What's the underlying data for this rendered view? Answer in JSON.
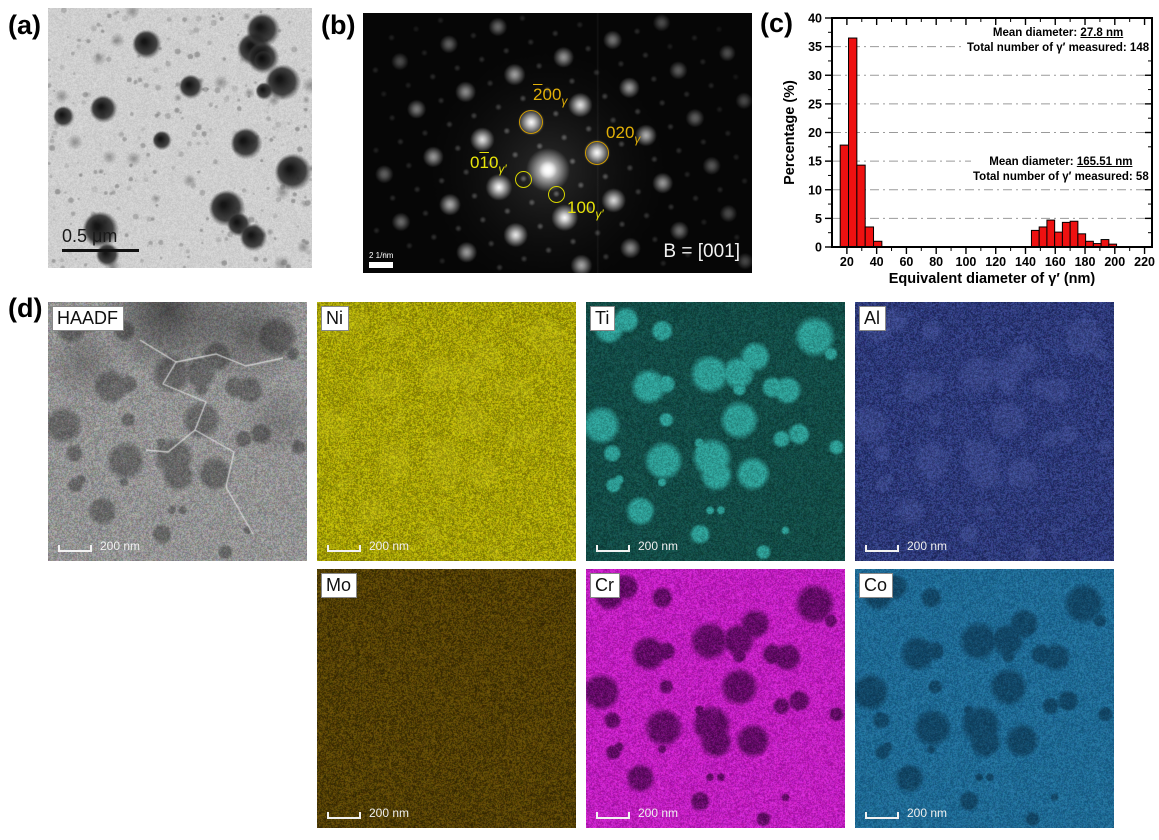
{
  "figure": {
    "panel_a": {
      "label": "(a)",
      "scale_bar_text": "0.5 μm"
    },
    "panel_b": {
      "label": "(b)",
      "beam_label": "B = [001]",
      "scale_bar_text": "2 1/nm",
      "spot_labels": [
        {
          "hkl": "200",
          "bar_digit": 0,
          "sub": "γ",
          "color": "#e2b007",
          "circle_color": "#cf9b00"
        },
        {
          "hkl": "020",
          "bar_digit": -1,
          "sub": "γ",
          "color": "#e2b007",
          "circle_color": "#cf9b00"
        },
        {
          "hkl": "010",
          "bar_digit": 1,
          "sub": "γ′",
          "color": "#e8e409",
          "circle_color": "#d6d400"
        },
        {
          "hkl": "100",
          "bar_digit": -1,
          "sub": "γ′",
          "color": "#e8e409",
          "circle_color": "#d6d400"
        }
      ]
    },
    "panel_c": {
      "label": "(c)"
    },
    "panel_d": {
      "label": "(d)",
      "maps": [
        {
          "name": "HAADF",
          "scale_bar_text": "200 nm"
        },
        {
          "name": "Ni",
          "scale_bar_text": "200 nm"
        },
        {
          "name": "Ti",
          "scale_bar_text": "200 nm"
        },
        {
          "name": "Al",
          "scale_bar_text": "200 nm"
        },
        {
          "name": "Mo",
          "scale_bar_text": "200 nm"
        },
        {
          "name": "Cr",
          "scale_bar_text": "200 nm"
        },
        {
          "name": "Co",
          "scale_bar_text": "200 nm"
        }
      ]
    }
  },
  "chart_data": {
    "type": "bar",
    "title": "",
    "xlabel": "Equivalent diameter of γ′ (nm)",
    "ylabel": "Percentage (%)",
    "xlim": [
      10,
      225
    ],
    "ylim": [
      0,
      40
    ],
    "xticks": [
      20,
      40,
      60,
      80,
      100,
      120,
      140,
      160,
      180,
      200,
      220
    ],
    "yticks": [
      0,
      5,
      10,
      15,
      20,
      25,
      30,
      35,
      40
    ],
    "grid": "horizontal dash-dot at every 5%",
    "legend": "none",
    "bar_color": "#ee1111",
    "series": [
      {
        "name": "small_gamma_prime_peak",
        "bin_width": 5.6,
        "bin_starts": [
          15.5,
          21.1,
          26.7,
          32.3,
          37.9
        ],
        "values": [
          17.8,
          36.5,
          14.3,
          3.5,
          1.0
        ],
        "mean_label": "Mean diameter: ",
        "mean_value": "27.8 nm",
        "count_label": "Total number of γ′ measured: 148"
      },
      {
        "name": "large_gamma_prime_peak",
        "bin_width": 5.2,
        "bin_starts": [
          144.0,
          149.2,
          154.4,
          159.6,
          164.8,
          170.0,
          175.2,
          180.4,
          185.6,
          190.8,
          196.0
        ],
        "values": [
          2.9,
          3.5,
          4.7,
          2.6,
          4.3,
          4.5,
          2.3,
          1.0,
          0.6,
          1.3,
          0.5
        ],
        "mean_label": "Mean diameter: ",
        "mean_value": "165.51 nm",
        "count_label": "Total number of γ′ measured: 58"
      }
    ]
  }
}
